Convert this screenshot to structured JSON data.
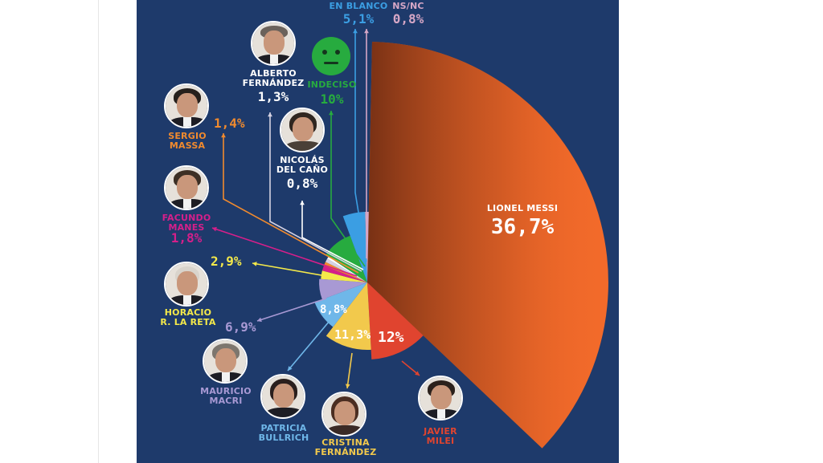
{
  "colors": {
    "background": "#1e3a6b",
    "messi": "#f26a2a",
    "milei": "#e0442f",
    "cristina": "#f2c94c",
    "bullrich": "#6fb7e9",
    "macri": "#a899d4",
    "larreta": "#f4e94a",
    "manes": "#d51f8a",
    "massa": "#f08a2e",
    "fernandez": "#d5d2e2",
    "delcano": "#ffffff",
    "indeciso": "#27ab3f",
    "blanco": "#3b9ee3",
    "nsnc": "#d6a7c6"
  },
  "chart_data": {
    "type": "pie",
    "slices": [
      {
        "label": "LIONEL MESSI",
        "value": 36.7,
        "value_text": "36,7%",
        "color": "#f26a2a"
      },
      {
        "label": "JAVIER MILEI",
        "value": 12,
        "value_text": "12%",
        "color": "#e0442f"
      },
      {
        "label": "CRISTINA FERNÁNDEZ",
        "value": 11.3,
        "value_text": "11,3%",
        "color": "#f2c94c"
      },
      {
        "label": "PATRICIA BULLRICH",
        "value": 8.8,
        "value_text": "8,8%",
        "color": "#6fb7e9"
      },
      {
        "label": "MAURICIO MACRI",
        "value": 6.9,
        "value_text": "6,9%",
        "color": "#a899d4"
      },
      {
        "label": "HORACIO R. LA RETA",
        "value": 2.9,
        "value_text": "2,9%",
        "color": "#f4e94a"
      },
      {
        "label": "FACUNDO MANES",
        "value": 1.8,
        "value_text": "1,8%",
        "color": "#d51f8a"
      },
      {
        "label": "SERGIO MASSA",
        "value": 1.4,
        "value_text": "1,4%",
        "color": "#f08a2e"
      },
      {
        "label": "ALBERTO FERNÁNDEZ",
        "value": 1.3,
        "value_text": "1,3%",
        "color": "#d5d2e2"
      },
      {
        "label": "NICOLÁS DEL CAÑO",
        "value": 0.8,
        "value_text": "0,8%",
        "color": "#ffffff"
      },
      {
        "label": "INDECISO",
        "value": 10,
        "value_text": "10%",
        "color": "#27ab3f"
      },
      {
        "label": "EN BLANCO",
        "value": 5.1,
        "value_text": "5,1%",
        "color": "#3b9ee3"
      },
      {
        "label": "NS/NC",
        "value": 0.8,
        "value_text": "0,8%",
        "color": "#d6a7c6"
      }
    ]
  },
  "labels": {
    "messi": {
      "line1": "LIONEL MESSI",
      "pct": "36,7%"
    },
    "milei": {
      "line1": "JAVIER",
      "line2": "MILEI",
      "pct": "12%"
    },
    "cristina": {
      "line1": "CRISTINA",
      "line2": "FERNÁNDEZ",
      "pct": "11,3%"
    },
    "bullrich": {
      "line1": "PATRICIA",
      "line2": "BULLRICH",
      "pct": "8,8%"
    },
    "macri": {
      "line1": "MAURICIO",
      "line2": "MACRI",
      "pct": "6,9%"
    },
    "larreta": {
      "line1": "HORACIO",
      "line2": "R. LA RETA",
      "pct": "2,9%"
    },
    "manes": {
      "line1": "FACUNDO",
      "line2": "MANES",
      "pct": "1,8%"
    },
    "massa": {
      "line1": "SERGIO",
      "line2": "MASSA",
      "pct": "1,4%"
    },
    "fernandez": {
      "line1": "ALBERTO",
      "line2": "FERNÁNDEZ",
      "pct": "1,3%"
    },
    "delcano": {
      "line1": "NICOLÁS",
      "line2": "DEL CAÑO",
      "pct": "0,8%"
    },
    "indeciso": {
      "line1": "INDECISO",
      "pct": "10%"
    },
    "blanco": {
      "line1": "EN BLANCO",
      "pct": "5,1%"
    },
    "nsnc": {
      "line1": "NS/NC",
      "pct": "0,8%"
    }
  },
  "icons": {
    "indeciso_face": "neutral-face-icon"
  }
}
